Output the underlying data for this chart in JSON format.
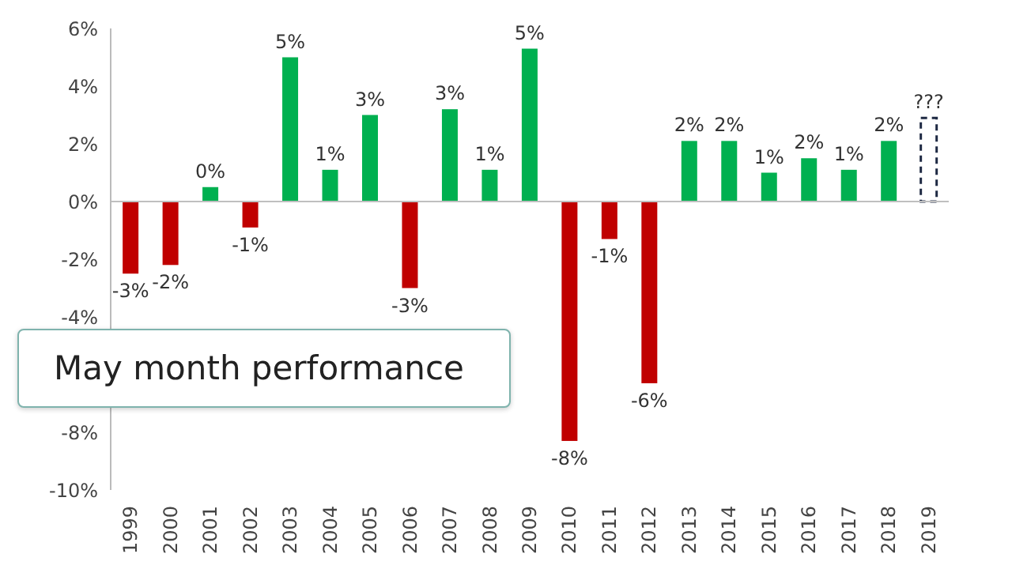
{
  "chart_data": {
    "type": "bar",
    "title": "May month performance",
    "categories": [
      "1999",
      "2000",
      "2001",
      "2002",
      "2003",
      "2004",
      "2005",
      "2006",
      "2007",
      "2008",
      "2009",
      "2010",
      "2011",
      "2012",
      "2013",
      "2014",
      "2015",
      "2016",
      "2017",
      "2018",
      "2019"
    ],
    "series": [
      {
        "values": [
          -2.5,
          -2.2,
          0.5,
          -0.9,
          5.0,
          1.1,
          3.0,
          -3.0,
          3.2,
          1.1,
          5.3,
          -8.3,
          -1.3,
          -6.3,
          2.1,
          2.1,
          1.0,
          1.5,
          1.1,
          2.1,
          null
        ],
        "colors": [
          "#c00000",
          "#c00000",
          "#00b050",
          "#c00000",
          "#00b050",
          "#00b050",
          "#00b050",
          "#c00000",
          "#00b050",
          "#00b050",
          "#00b050",
          "#c00000",
          "#c00000",
          "#c00000",
          "#00b050",
          "#00b050",
          "#00b050",
          "#00b050",
          "#00b050",
          "#00b050",
          null
        ],
        "value_labels": [
          "-3%",
          "-2%",
          "0%",
          "-1%",
          "5%",
          "1%",
          "3%",
          "-3%",
          "3%",
          "1%",
          "5%",
          "-8%",
          "-1%",
          "-6%",
          "2%",
          "2%",
          "1%",
          "2%",
          "1%",
          "2%",
          null
        ]
      },
      {
        "line_style": "dashed",
        "color": "#1f2a44",
        "values": [
          null,
          null,
          null,
          null,
          null,
          null,
          null,
          null,
          null,
          null,
          null,
          null,
          null,
          null,
          null,
          null,
          null,
          null,
          null,
          null,
          2.9
        ],
        "value_labels": [
          null,
          null,
          null,
          null,
          null,
          null,
          null,
          null,
          null,
          null,
          null,
          null,
          null,
          null,
          null,
          null,
          null,
          null,
          null,
          null,
          "???"
        ]
      }
    ],
    "ylim": [
      -10,
      6
    ],
    "yticks": [
      {
        "value": -10,
        "label": "-10%"
      },
      {
        "value": -8,
        "label": "-8%"
      },
      {
        "value": -4,
        "label": "-4%"
      },
      {
        "value": -2,
        "label": "-2%"
      },
      {
        "value": 0,
        "label": "0%"
      },
      {
        "value": 2,
        "label": "2%"
      },
      {
        "value": 4,
        "label": "4%"
      },
      {
        "value": 6,
        "label": "6%"
      }
    ],
    "ref_lines": [
      {
        "axis": "y",
        "value": 0,
        "color": "#bfbfbf"
      }
    ],
    "grid": false,
    "legend": false
  }
}
